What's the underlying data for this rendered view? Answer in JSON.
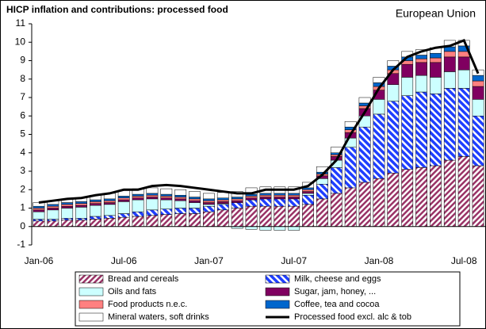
{
  "chart_data": {
    "type": "bar",
    "stacked": true,
    "title": "HICP inflation and contributions: processed food",
    "subtitle": "European Union",
    "categories": [
      "Jan-06",
      null,
      null,
      null,
      null,
      null,
      "Jul-06",
      null,
      null,
      null,
      null,
      null,
      "Jan-07",
      null,
      null,
      null,
      null,
      null,
      "Jul-07",
      null,
      null,
      null,
      null,
      null,
      "Jan-08",
      null,
      null,
      null,
      null,
      null,
      "Jul-08",
      null
    ],
    "ylim": [
      -1,
      11
    ],
    "yticks": [
      -1,
      0,
      1,
      2,
      3,
      4,
      5,
      6,
      7,
      8,
      9,
      10,
      11
    ],
    "grid": false,
    "legend": "bottom",
    "series": [
      {
        "name": "Bread and cereals",
        "color": "#993366",
        "hatch": "up",
        "values": [
          0.3,
          0.3,
          0.35,
          0.35,
          0.4,
          0.45,
          0.5,
          0.55,
          0.6,
          0.65,
          0.7,
          0.7,
          0.8,
          0.9,
          1.0,
          1.1,
          1.1,
          1.1,
          1.1,
          1.2,
          1.5,
          1.8,
          2.1,
          2.4,
          2.6,
          2.9,
          3.1,
          3.2,
          3.3,
          3.6,
          3.8,
          3.3
        ]
      },
      {
        "name": "Milk, cheese and eggs",
        "color": "#1f3fff",
        "hatch": "down",
        "values": [
          0.1,
          0.1,
          0.1,
          0.1,
          0.15,
          0.15,
          0.2,
          0.25,
          0.3,
          0.3,
          0.3,
          0.3,
          0.3,
          0.3,
          0.3,
          0.35,
          0.4,
          0.4,
          0.4,
          0.5,
          0.8,
          1.4,
          2.2,
          3.0,
          3.5,
          3.9,
          4.0,
          4.1,
          3.9,
          3.9,
          3.7,
          2.7
        ]
      },
      {
        "name": "Oils and fats",
        "color": "#ccffff",
        "values": [
          0.4,
          0.5,
          0.55,
          0.6,
          0.6,
          0.6,
          0.65,
          0.65,
          0.6,
          0.5,
          0.4,
          0.3,
          0.1,
          0.05,
          -0.1,
          -0.15,
          -0.2,
          -0.2,
          -0.2,
          0.1,
          0.3,
          0.4,
          0.5,
          0.6,
          0.8,
          0.9,
          1.0,
          0.9,
          0.9,
          0.9,
          1.0,
          0.9
        ]
      },
      {
        "name": "Sugar, jam, honey, ...",
        "color": "#800060",
        "values": [
          0.1,
          0.1,
          0.1,
          0.1,
          0.1,
          0.1,
          0.1,
          0.1,
          0.1,
          0.1,
          0.1,
          0.1,
          0.1,
          0.1,
          0.1,
          0.1,
          0.1,
          0.1,
          0.1,
          0.1,
          0.15,
          0.2,
          0.3,
          0.4,
          0.5,
          0.6,
          0.7,
          0.7,
          0.8,
          0.8,
          0.7,
          0.7
        ]
      },
      {
        "name": "Food products n.e.c.",
        "color": "#ff8080",
        "values": [
          0.1,
          0.1,
          0.1,
          0.1,
          0.1,
          0.1,
          0.1,
          0.1,
          0.1,
          0.1,
          0.1,
          0.1,
          0.1,
          0.1,
          0.1,
          0.1,
          0.1,
          0.1,
          0.1,
          0.1,
          0.1,
          0.1,
          0.15,
          0.15,
          0.2,
          0.2,
          0.2,
          0.2,
          0.25,
          0.3,
          0.3,
          0.3
        ]
      },
      {
        "name": "Coffee, tea and cocoa",
        "color": "#0066cc",
        "values": [
          0.1,
          0.1,
          0.1,
          0.1,
          0.1,
          0.1,
          0.1,
          0.1,
          0.1,
          0.1,
          0.1,
          0.1,
          0.1,
          0.1,
          0.1,
          0.1,
          0.1,
          0.1,
          0.1,
          0.1,
          0.1,
          0.1,
          0.15,
          0.15,
          0.2,
          0.2,
          0.2,
          0.2,
          0.25,
          0.25,
          0.3,
          0.3
        ]
      },
      {
        "name": "Mineral waters, soft drinks",
        "color": "#ffffff",
        "values": [
          0.2,
          0.2,
          0.2,
          0.2,
          0.25,
          0.3,
          0.3,
          0.3,
          0.3,
          0.3,
          0.3,
          0.3,
          0.3,
          0.3,
          0.3,
          0.35,
          0.35,
          0.35,
          0.35,
          0.3,
          0.3,
          0.3,
          0.3,
          0.3,
          0.3,
          0.3,
          0.3,
          0.3,
          0.3,
          0.35,
          0.3,
          0.3
        ]
      },
      {
        "name": "Processed food excl. alc & tob",
        "color": "#000000",
        "type": "line",
        "values": [
          1.3,
          1.4,
          1.5,
          1.55,
          1.7,
          1.8,
          2.0,
          2.0,
          2.2,
          2.25,
          2.2,
          2.1,
          2.0,
          1.9,
          1.8,
          1.8,
          2.0,
          2.0,
          2.0,
          2.2,
          2.8,
          3.6,
          5.0,
          6.2,
          7.5,
          8.5,
          9.2,
          9.5,
          9.7,
          9.8,
          10.1,
          8.3
        ]
      }
    ]
  }
}
